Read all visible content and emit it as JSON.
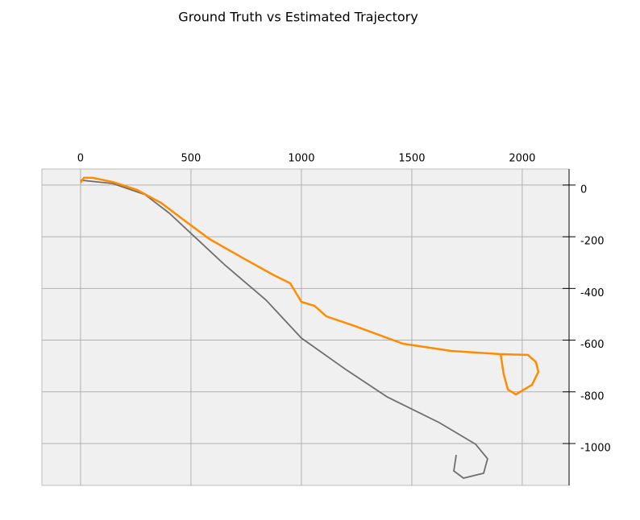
{
  "chart_data": {
    "type": "line",
    "title": "Ground Truth vs Estimated Trajectory",
    "xlim": [
      -175,
      2212
    ],
    "ylim": [
      -1162,
      62
    ],
    "xticks": [
      0,
      500,
      1000,
      1500,
      2000
    ],
    "yticks": [
      0,
      -200,
      -400,
      -600,
      -800,
      -1000
    ],
    "grid": true,
    "series": [
      {
        "name": "Ground Truth",
        "color": "#6e6e6e",
        "x": [
          0,
          146,
          292,
          402,
          511,
          657,
          840,
          1000,
          1205,
          1387,
          1624,
          1789,
          1843,
          1825,
          1734,
          1690,
          1701
        ],
        "values": [
          19,
          6,
          -37,
          -109,
          -196,
          -312,
          -445,
          -592,
          -716,
          -819,
          -919,
          -1003,
          -1059,
          -1115,
          -1134,
          -1106,
          -1044
        ]
      },
      {
        "name": "Estimated",
        "color": "#ff8c00",
        "x": [
          0,
          15,
          55,
          146,
          256,
          365,
          475,
          584,
          730,
          876,
          949,
          1000,
          1059,
          1113,
          1241,
          1460,
          1679,
          1898,
          2026,
          2062,
          2073,
          2044,
          1971,
          1935,
          1916,
          1902
        ],
        "values": [
          9,
          28,
          28,
          12,
          -19,
          -69,
          -140,
          -209,
          -280,
          -349,
          -380,
          -452,
          -467,
          -508,
          -545,
          -614,
          -642,
          -654,
          -657,
          -685,
          -723,
          -773,
          -810,
          -791,
          -732,
          -654
        ]
      }
    ]
  }
}
